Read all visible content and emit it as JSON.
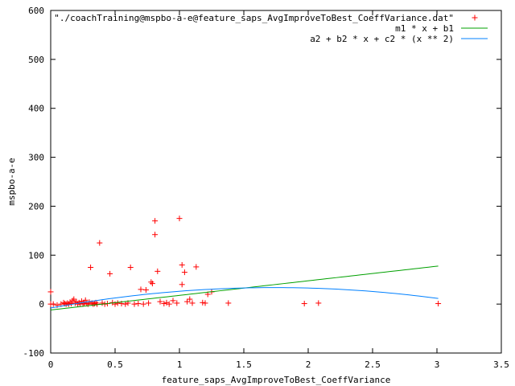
{
  "chart_data": {
    "type": "scatter",
    "title": "",
    "xlabel": "feature_saps_AvgImproveToBest_CoeffVariance",
    "ylabel": "mspbo-a-e",
    "xlim": [
      0,
      3.5
    ],
    "ylim": [
      -100,
      600
    ],
    "x_ticks": [
      0,
      0.5,
      1,
      1.5,
      2,
      2.5,
      3,
      3.5
    ],
    "x_tick_labels": [
      "0",
      "0.5",
      "1",
      "1.5",
      "2",
      "2.5",
      "3",
      "3.5"
    ],
    "y_ticks": [
      -100,
      0,
      100,
      200,
      300,
      400,
      500,
      600
    ],
    "y_tick_labels": [
      "-100",
      "0",
      "100",
      "200",
      "300",
      "400",
      "500",
      "600"
    ],
    "grid": false,
    "legend_position": "top-right",
    "series": [
      {
        "name": "\"./coachTraining@mspbo-a-e@feature_saps_AvgImproveToBest_CoeffVariance.dat\"",
        "kind": "points",
        "marker": "+",
        "color": "#ff0000",
        "points": [
          [
            0.0,
            25
          ],
          [
            0.0,
            0
          ],
          [
            0.02,
            0
          ],
          [
            0.05,
            -2
          ],
          [
            0.08,
            0
          ],
          [
            0.1,
            3
          ],
          [
            0.11,
            1
          ],
          [
            0.12,
            0
          ],
          [
            0.13,
            2
          ],
          [
            0.14,
            0
          ],
          [
            0.15,
            4
          ],
          [
            0.16,
            1
          ],
          [
            0.17,
            7
          ],
          [
            0.18,
            10
          ],
          [
            0.19,
            2
          ],
          [
            0.2,
            5
          ],
          [
            0.21,
            0
          ],
          [
            0.22,
            3
          ],
          [
            0.23,
            1
          ],
          [
            0.24,
            6
          ],
          [
            0.25,
            0
          ],
          [
            0.26,
            2
          ],
          [
            0.27,
            8
          ],
          [
            0.28,
            1
          ],
          [
            0.29,
            0
          ],
          [
            0.3,
            4
          ],
          [
            0.31,
            75
          ],
          [
            0.32,
            2
          ],
          [
            0.33,
            0
          ],
          [
            0.34,
            1
          ],
          [
            0.35,
            3
          ],
          [
            0.36,
            0
          ],
          [
            0.38,
            125
          ],
          [
            0.4,
            2
          ],
          [
            0.42,
            0
          ],
          [
            0.44,
            1
          ],
          [
            0.46,
            62
          ],
          [
            0.48,
            3
          ],
          [
            0.5,
            0
          ],
          [
            0.52,
            2
          ],
          [
            0.55,
            1
          ],
          [
            0.58,
            0
          ],
          [
            0.6,
            2
          ],
          [
            0.62,
            75
          ],
          [
            0.65,
            0
          ],
          [
            0.68,
            1
          ],
          [
            0.7,
            30
          ],
          [
            0.72,
            0
          ],
          [
            0.74,
            29
          ],
          [
            0.76,
            2
          ],
          [
            0.78,
            45
          ],
          [
            0.79,
            42
          ],
          [
            0.81,
            170
          ],
          [
            0.81,
            142
          ],
          [
            0.83,
            67
          ],
          [
            0.85,
            5
          ],
          [
            0.88,
            1
          ],
          [
            0.9,
            3
          ],
          [
            0.92,
            0
          ],
          [
            0.95,
            7
          ],
          [
            0.98,
            2
          ],
          [
            1.0,
            175
          ],
          [
            1.02,
            80
          ],
          [
            1.02,
            40
          ],
          [
            1.04,
            65
          ],
          [
            1.06,
            5
          ],
          [
            1.08,
            10
          ],
          [
            1.1,
            2
          ],
          [
            1.13,
            76
          ],
          [
            1.18,
            3
          ],
          [
            1.2,
            2
          ],
          [
            1.22,
            20
          ],
          [
            1.25,
            25
          ],
          [
            1.38,
            2
          ],
          [
            1.97,
            1
          ],
          [
            2.08,
            2
          ],
          [
            3.01,
            1
          ]
        ]
      },
      {
        "name": "m1 * x + b1",
        "kind": "line",
        "color": "#00a000",
        "fit": {
          "form": "linear",
          "m": 29.8,
          "b": -12
        },
        "x_range": [
          0,
          3.01
        ]
      },
      {
        "name": "a2 + b2 * x + c2 * (x ** 2)",
        "kind": "line",
        "color": "#0080ff",
        "fit": {
          "form": "quadratic",
          "a": -8,
          "b": 48,
          "c": -13.8
        },
        "x_range": [
          0,
          3.01
        ]
      }
    ]
  }
}
